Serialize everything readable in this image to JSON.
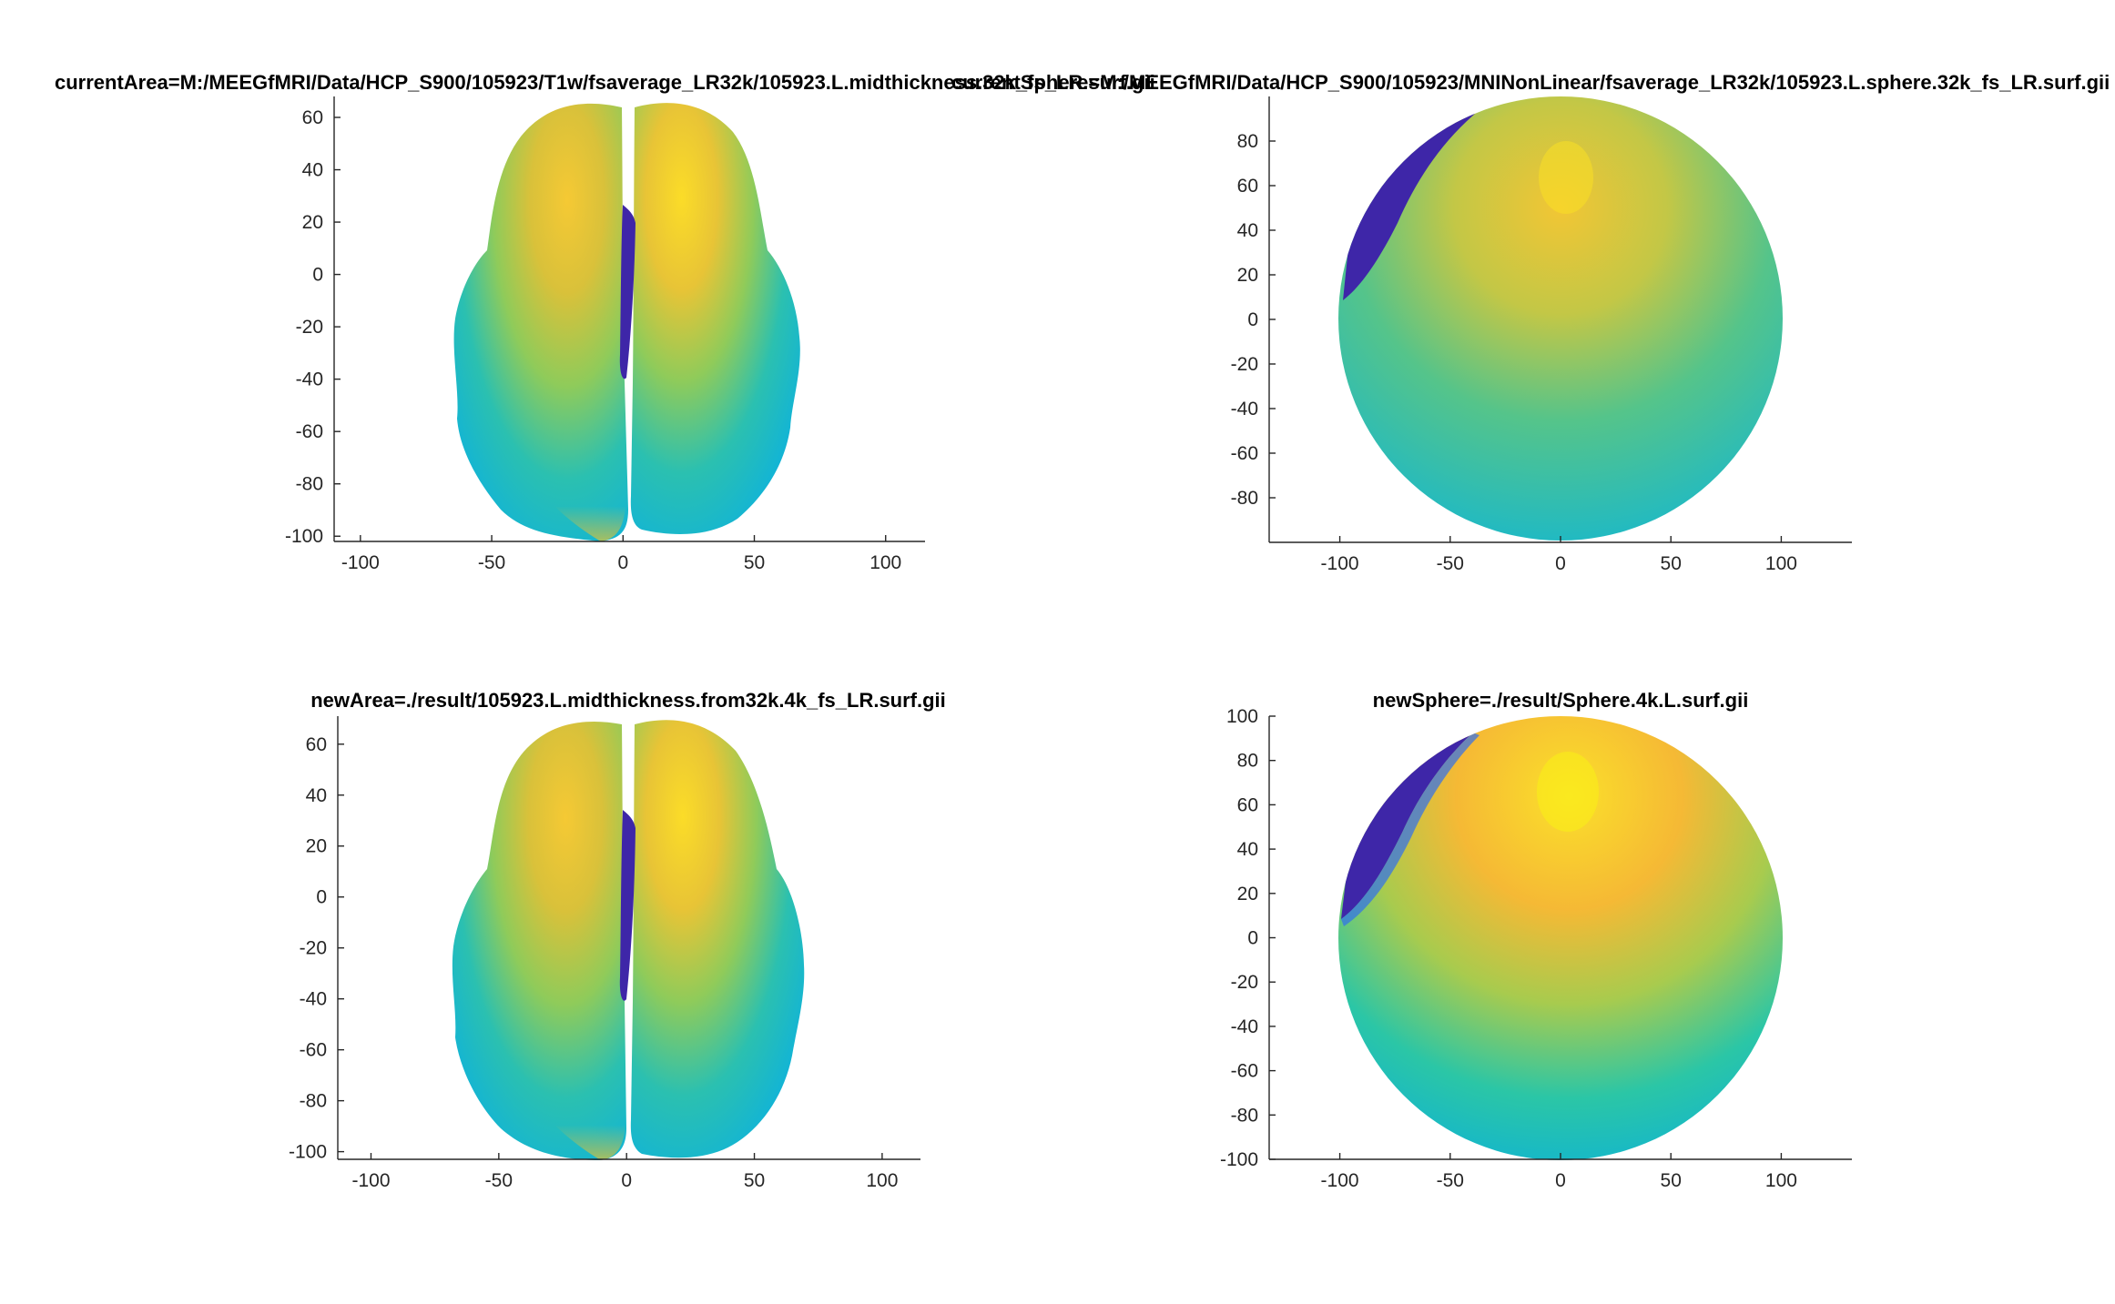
{
  "figure": {
    "colors": {
      "background": "#ffffff",
      "axis": "#262626",
      "colormap": [
        "#3e26a8",
        "#2f6ff0",
        "#12b4d6",
        "#2bc6a6",
        "#8fcb5a",
        "#d9c13a",
        "#fbb831",
        "#f9fb15"
      ]
    }
  },
  "chart_data": [
    {
      "type": "heatmap",
      "subtype": "brain-surface-top-view",
      "title": "currentArea=M:/MEEGfMRI/Data/HCP_S900/105923/T1w/fsaverage_LR32k/105923.L.midthickness.32k_fs_LR.surf.gii",
      "xlim": [
        -110,
        115
      ],
      "ylim": [
        -102,
        68
      ],
      "xticks": [
        -100,
        -50,
        0,
        50,
        100
      ],
      "yticks": [
        60,
        40,
        20,
        0,
        -20,
        -40,
        -60,
        -80,
        -100
      ],
      "colormap": "parula"
    },
    {
      "type": "heatmap",
      "subtype": "sphere-surface-top-view",
      "title": "currentSphere=M:/MEEGfMRI/Data/HCP_S900/105923/MNINonLinear/fsaverage_LR32k/105923.L.sphere.32k_fs_LR.surf.gii",
      "xlim": [
        -132,
        132
      ],
      "ylim": [
        -100,
        100
      ],
      "xticks": [
        -100,
        -50,
        0,
        50,
        100
      ],
      "yticks": [
        80,
        60,
        40,
        20,
        0,
        -20,
        -40,
        -60,
        -80
      ],
      "colormap": "parula"
    },
    {
      "type": "heatmap",
      "subtype": "brain-surface-top-view",
      "title": "newArea=./result/105923.L.midthickness.from32k.4k_fs_LR.surf.gii",
      "xlim": [
        -113,
        115
      ],
      "ylim": [
        -103,
        71
      ],
      "xticks": [
        -100,
        -50,
        0,
        50,
        100
      ],
      "yticks": [
        60,
        40,
        20,
        0,
        -20,
        -40,
        -60,
        -80,
        -100
      ],
      "colormap": "parula"
    },
    {
      "type": "heatmap",
      "subtype": "sphere-surface-top-view",
      "title": "newSphere=./result/Sphere.4k.L.surf.gii",
      "xlim": [
        -132,
        132
      ],
      "ylim": [
        -100,
        100
      ],
      "xticks": [
        -100,
        -50,
        0,
        50,
        100
      ],
      "yticks": [
        100,
        80,
        60,
        40,
        20,
        0,
        -20,
        -40,
        -60,
        -80,
        -100
      ],
      "colormap": "parula"
    }
  ]
}
